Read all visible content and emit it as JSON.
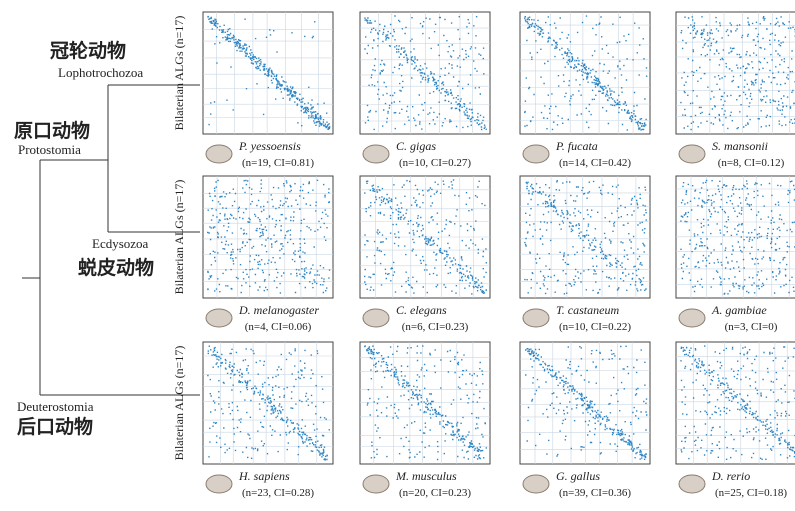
{
  "tree": {
    "lophotrochozoa_zh": "冠轮动物",
    "lophotrochozoa_en": "Lophotrochozoa",
    "protostomia_zh": "原口动物",
    "protostomia_en": "Protostomia",
    "ecdysozoa_en": "Ecdysozoa",
    "ecdysozoa_zh": "蜕皮动物",
    "deuterostomia_en": "Deuterostomia",
    "deuterostomia_zh": "后口动物"
  },
  "rows": [
    {
      "y_label": "Bilaterian ALGs (n=17)",
      "panels": [
        {
          "species": "P. yessoensis",
          "stats": "(n=19, CI=0.81)"
        },
        {
          "species": "C. gigas",
          "stats": "(n=10, CI=0.27)"
        },
        {
          "species": "P. fucata",
          "stats": "(n=14, CI=0.42)"
        },
        {
          "species": "S. mansonii",
          "stats": "(n=8, CI=0.12)"
        }
      ]
    },
    {
      "y_label": "Bilaterian ALGs (n=17)",
      "panels": [
        {
          "species": "D. melanogaster",
          "stats": "(n=4, CI=0.06)"
        },
        {
          "species": "C. elegans",
          "stats": "(n=6, CI=0.23)"
        },
        {
          "species": "T. castaneum",
          "stats": "(n=10, CI=0.22)"
        },
        {
          "species": "A. gambiae",
          "stats": "(n=3, CI=0)"
        }
      ]
    },
    {
      "y_label": "Bilaterian ALGs (n=17)",
      "panels": [
        {
          "species": "H. sapiens",
          "stats": "(n=23, CI=0.28)"
        },
        {
          "species": "M. musculus",
          "stats": "(n=20, CI=0.23)"
        },
        {
          "species": "G. gallus",
          "stats": "(n=39, CI=0.36)"
        },
        {
          "species": "D. rerio",
          "stats": "(n=25, CI=0.18)"
        }
      ]
    }
  ]
}
